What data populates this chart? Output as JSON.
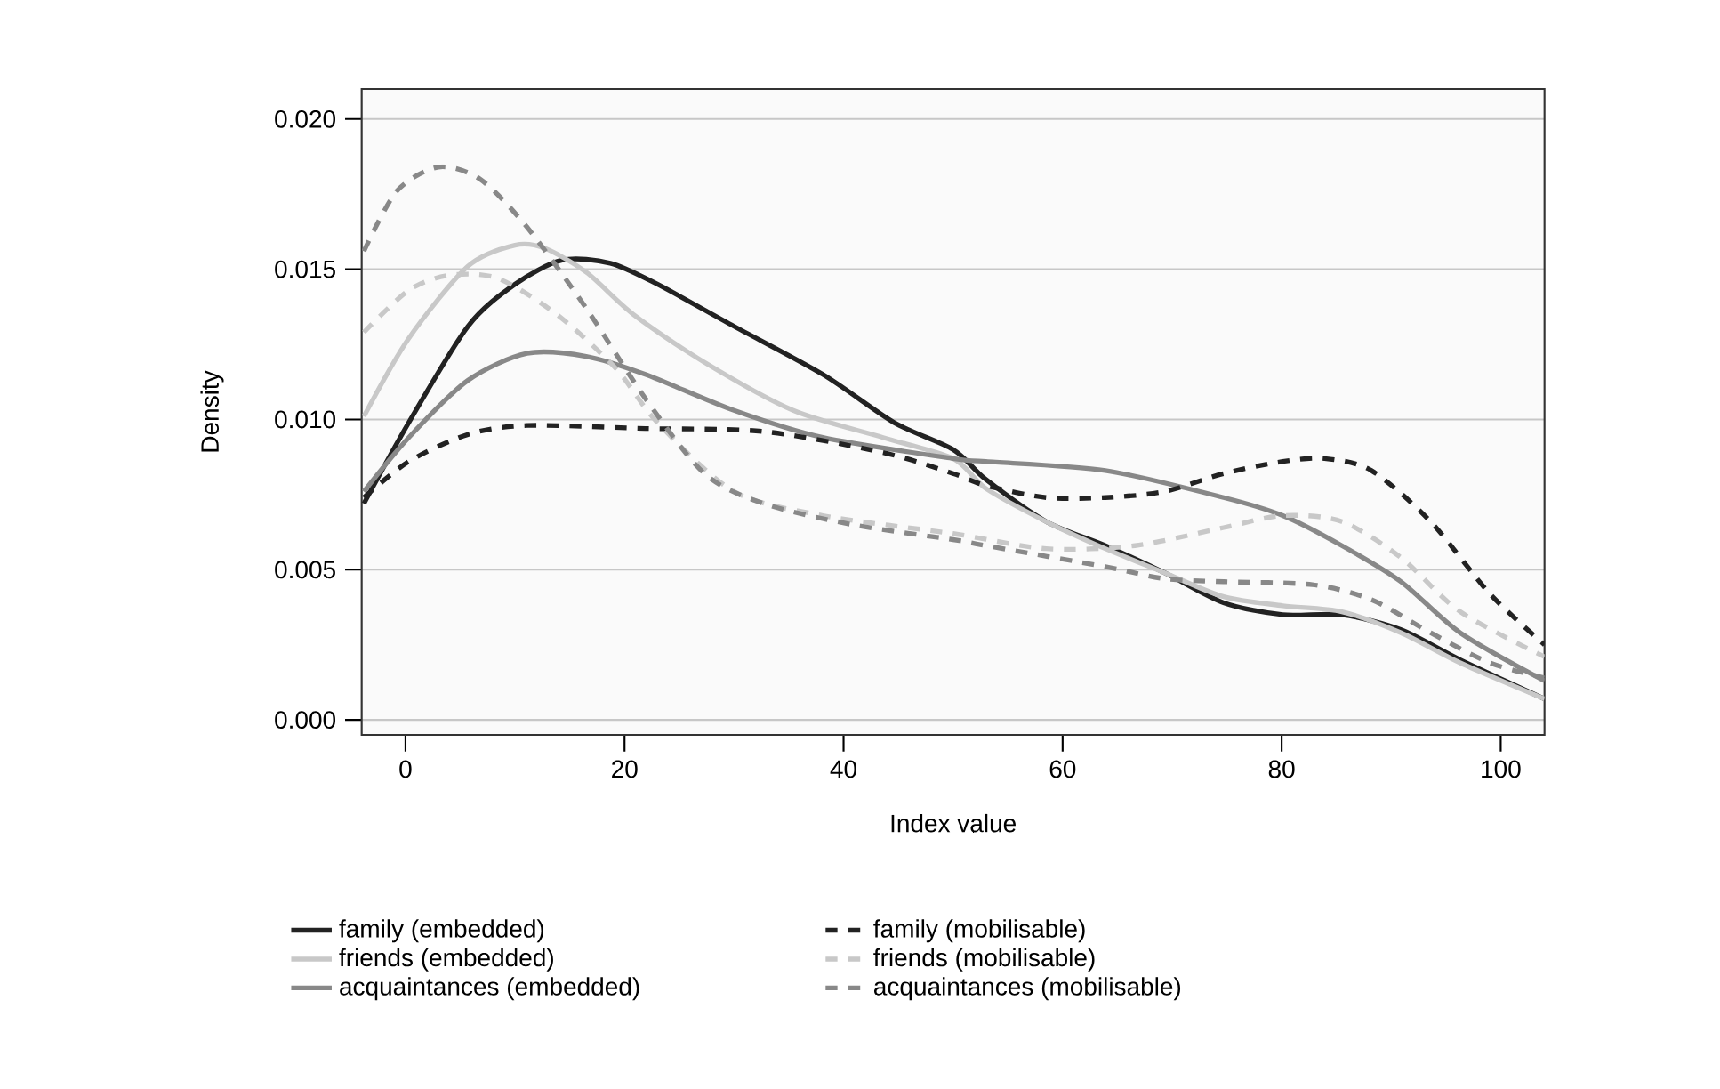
{
  "chart_data": {
    "type": "line",
    "xlabel": "Index value",
    "ylabel": "Density",
    "xlim": [
      -4,
      104
    ],
    "ylim": [
      -0.0005,
      0.021
    ],
    "xticks": [
      0,
      20,
      40,
      60,
      80,
      100
    ],
    "yticks": [
      {
        "value": 0,
        "label": "0.000"
      },
      {
        "value": 0.005,
        "label": "0.005"
      },
      {
        "value": 0.01,
        "label": "0.010"
      },
      {
        "value": 0.015,
        "label": "0.015"
      },
      {
        "value": 0.02,
        "label": "0.020"
      }
    ],
    "grid": "y",
    "legend": "bottom",
    "marker": "none",
    "series": [
      {
        "name": "family (embedded)",
        "color": "#222222",
        "line_style": "solid",
        "x": [
          -3.8,
          0.3,
          5.7,
          10,
          14.3,
          18.7,
          23,
          30,
          38.1,
          44.6,
          50,
          53,
          58.5,
          63.9,
          69.3,
          74.7,
          80.1,
          85.5,
          90.9,
          96.3,
          104
        ],
        "values": [
          0.0072,
          0.0099,
          0.0131,
          0.0145,
          0.0153,
          0.0152,
          0.0145,
          0.0131,
          0.0115,
          0.0099,
          0.009,
          0.008,
          0.0066,
          0.0058,
          0.0049,
          0.0039,
          0.0035,
          0.0035,
          0.003,
          0.002,
          0.0007
        ]
      },
      {
        "name": "friends (embedded)",
        "color": "#c8c8c8",
        "line_style": "solid",
        "x": [
          -3.8,
          0.3,
          5.7,
          10,
          12.7,
          16.5,
          20.8,
          27.3,
          35.4,
          43.6,
          50,
          53,
          58.5,
          63.9,
          69.3,
          74.7,
          80.1,
          85.5,
          90.9,
          96.3,
          104
        ],
        "values": [
          0.0101,
          0.0127,
          0.0151,
          0.0158,
          0.0157,
          0.0149,
          0.0135,
          0.0119,
          0.0103,
          0.0094,
          0.0087,
          0.0077,
          0.0066,
          0.0057,
          0.0049,
          0.0041,
          0.0038,
          0.0036,
          0.0029,
          0.0019,
          0.0007
        ]
      },
      {
        "name": "acquaintances (embedded)",
        "color": "#888888",
        "line_style": "solid",
        "x": [
          -3.8,
          0.3,
          5.7,
          11.1,
          16.5,
          21.9,
          30,
          38.1,
          50,
          53,
          63.9,
          74.7,
          80.1,
          85.5,
          90.9,
          96.3,
          104
        ],
        "values": [
          0.0076,
          0.0094,
          0.0113,
          0.0122,
          0.0121,
          0.0115,
          0.0103,
          0.0094,
          0.0087,
          0.0086,
          0.0083,
          0.0074,
          0.0068,
          0.0058,
          0.0046,
          0.0029,
          0.0013
        ]
      },
      {
        "name": "family (mobilisable)",
        "color": "#222222",
        "line_style": "dashed",
        "x": [
          -3.8,
          0.3,
          5.7,
          11.1,
          21.9,
          32.7,
          43.6,
          50,
          53,
          58.5,
          63.9,
          69.3,
          74.7,
          80.1,
          83.9,
          88.2,
          93.6,
          99,
          104
        ],
        "values": [
          0.0074,
          0.0086,
          0.0095,
          0.0098,
          0.0097,
          0.0096,
          0.0089,
          0.0082,
          0.0078,
          0.0074,
          0.0074,
          0.0076,
          0.0082,
          0.0086,
          0.0087,
          0.0083,
          0.0066,
          0.0042,
          0.0025
        ]
      },
      {
        "name": "friends (mobilisable)",
        "color": "#c8c8c8",
        "line_style": "dashed",
        "x": [
          -3.8,
          0.3,
          4,
          8.4,
          13.8,
          19.2,
          23,
          30,
          38.1,
          50,
          58.5,
          66.6,
          74.7,
          80.1,
          85.5,
          90.9,
          96.3,
          104
        ],
        "values": [
          0.0129,
          0.0143,
          0.0148,
          0.0147,
          0.0135,
          0.0117,
          0.0099,
          0.0076,
          0.0068,
          0.0062,
          0.0057,
          0.0058,
          0.0064,
          0.0068,
          0.0066,
          0.0054,
          0.0036,
          0.0021
        ]
      },
      {
        "name": "acquaintances (mobilisable)",
        "color": "#888888",
        "line_style": "dashed",
        "x": [
          -3.8,
          -0.8,
          3,
          6.8,
          11.1,
          16.5,
          21.9,
          27.3,
          32.7,
          40.8,
          50,
          53,
          63.9,
          69.3,
          74.7,
          82.8,
          88.2,
          93.6,
          99,
          104
        ],
        "values": [
          0.0156,
          0.0176,
          0.0184,
          0.018,
          0.0164,
          0.0137,
          0.0107,
          0.0082,
          0.0072,
          0.0065,
          0.006,
          0.0058,
          0.0051,
          0.0047,
          0.0046,
          0.0045,
          0.004,
          0.0029,
          0.0019,
          0.0014
        ]
      }
    ]
  }
}
